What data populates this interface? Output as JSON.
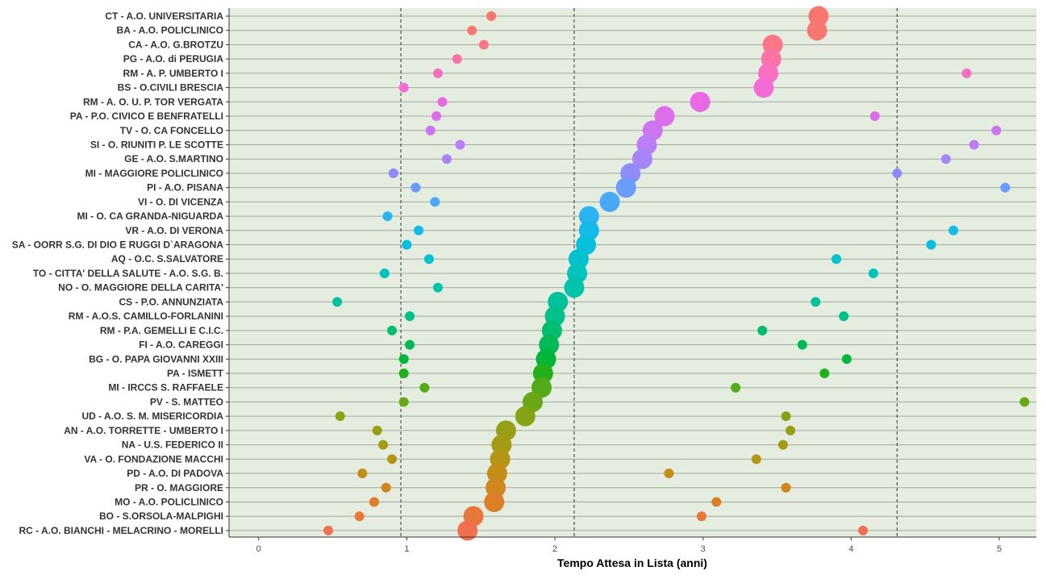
{
  "chart_data": {
    "type": "scatter",
    "xlabel": "Tempo Attesa in Lista (anni)",
    "ylabel": "",
    "xlim": [
      -0.2,
      5.25
    ],
    "x_ticks": [
      "0",
      "1",
      "2",
      "3",
      "4",
      "5"
    ],
    "x_tick_values": [
      0,
      1,
      2,
      3,
      4,
      5
    ],
    "reference_lines": [
      0.96,
      2.13,
      4.31
    ],
    "grid": true,
    "legend": "none",
    "background": "#e4ede0",
    "categories": [
      "CT  -  A.O. UNIVERSITARIA",
      "BA  -  A.O. POLICLINICO",
      "CA  -  A.O. G.BROTZU",
      "PG - A.O. di PERUGIA",
      "RM  -  A. P. UMBERTO I",
      "BS  -  O.CIVILI BRESCIA",
      "RM  -  A. O. U. P. TOR VERGATA",
      "PA  -  P.O. CIVICO E BENFRATELLI",
      "TV  -  O. CA FONCELLO",
      "SI  -  O. RIUNITI P. LE SCOTTE",
      "GE  -  A.O. S.MARTINO",
      "MI  -  MAGGIORE POLICLINICO",
      "PI  -  A.O. PISANA",
      "VI  -  O. DI VICENZA",
      "MI  -  O. CA GRANDA-NIGUARDA",
      "VR  -  A.O. DI VERONA",
      "SA - OORR S.G. DI DIO E RUGGI D`ARAGONA",
      "AQ  -  O.C. S.SALVATORE",
      "TO  -  CITTA' DELLA SALUTE - A.O. S.G. B.",
      "NO  -  O. MAGGIORE DELLA CARITA'",
      "CS - P.O. ANNUNZIATA",
      "RM  -  A.O.S. CAMILLO-FORLANINI",
      "RM  -  P.A. GEMELLI E C.I.C.",
      "FI  -  A.O. CAREGGI",
      "BG  - O. PAPA GIOVANNI XXIII",
      "PA - ISMETT",
      "MI - IRCCS  S. RAFFAELE",
      "PV  -  S. MATTEO",
      "UD - A.O. S. M. MISERICORDIA",
      "AN  -  A.O. TORRETTE - UMBERTO I",
      "NA  -  U.S. FEDERICO II",
      "VA  -  O. FONDAZIONE MACCHI",
      "PD  -  A.O. DI PADOVA",
      "PR  -  O. MAGGIORE",
      "MO  -  A.O. POLICLINICO",
      "BO  -  S.ORSOLA-MALPIGHI",
      "RC - A.O. BIANCHI - MELACRINO - MORELLI"
    ],
    "colors": [
      "#f8766d",
      "#fa7771",
      "#fb7689",
      "#fc73a6",
      "#fa6fc0",
      "#f26bd6",
      "#e969e4",
      "#dd6eeb",
      "#cd75f1",
      "#bb7ef7",
      "#a585f8",
      "#8f8cfa",
      "#6a9cfb",
      "#4aa8f8",
      "#2bb3f2",
      "#15bae8",
      "#08bfde",
      "#00c2ce",
      "#00c3bd",
      "#00c3ab",
      "#00c29a",
      "#00c089",
      "#00bd70",
      "#00ba55",
      "#00b63a",
      "#24b01c",
      "#52ac18",
      "#6aa716",
      "#85a414",
      "#95a014",
      "#a39c13",
      "#b49614",
      "#c48e16",
      "#d1861e",
      "#dc7f28",
      "#e8773a",
      "#f17050"
    ],
    "series": [
      {
        "values": [
          1.57,
          1.44,
          1.52,
          1.34,
          1.21,
          0.98,
          1.24,
          1.2,
          1.16,
          1.36,
          1.27,
          0.91,
          1.06,
          1.19,
          0.87,
          1.08,
          1.0,
          1.15,
          0.85,
          1.21,
          0.53,
          1.02,
          0.9,
          1.02,
          0.98,
          0.98,
          1.12,
          0.98,
          0.55,
          0.8,
          0.84,
          0.9,
          0.7,
          0.86,
          0.78,
          0.68,
          0.47
        ]
      },
      {
        "values": [
          3.78,
          3.77,
          3.47,
          3.46,
          3.44,
          3.41,
          2.98,
          2.74,
          2.66,
          2.62,
          2.59,
          2.51,
          2.48,
          2.37,
          2.23,
          2.23,
          2.21,
          2.16,
          2.15,
          2.13,
          2.02,
          2.0,
          1.98,
          1.96,
          1.94,
          1.92,
          1.91,
          1.85,
          1.8,
          1.67,
          1.64,
          1.63,
          1.61,
          1.6,
          1.59,
          1.45,
          1.41
        ]
      },
      {
        "values": [
          null,
          null,
          null,
          null,
          4.78,
          null,
          null,
          4.16,
          4.98,
          4.83,
          4.64,
          4.31,
          5.04,
          null,
          null,
          4.69,
          4.54,
          3.9,
          4.15,
          null,
          3.76,
          3.95,
          3.4,
          3.67,
          3.97,
          3.82,
          3.22,
          5.17,
          3.56,
          3.59,
          3.54,
          3.36,
          2.77,
          3.56,
          3.09,
          2.99,
          4.08
        ]
      }
    ]
  }
}
